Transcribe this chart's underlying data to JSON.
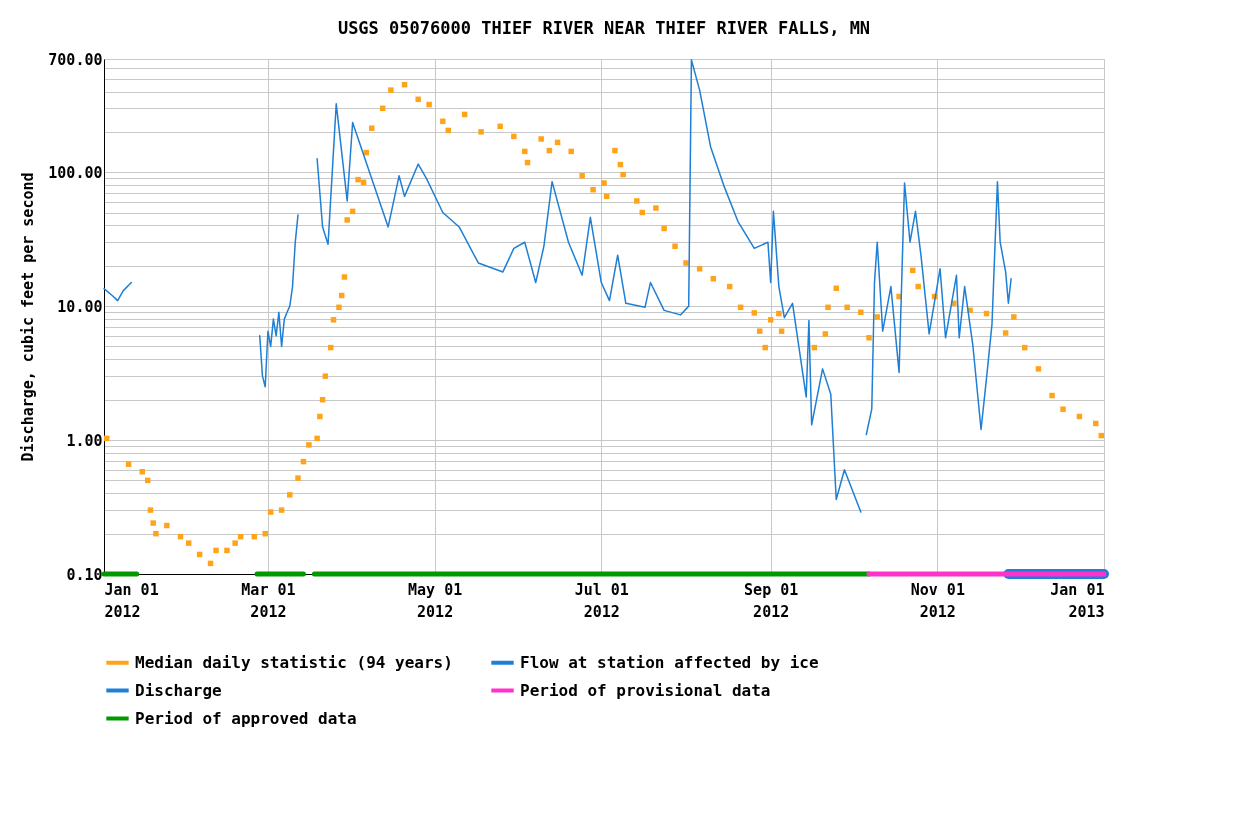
{
  "chart_data": {
    "type": "line",
    "title": "USGS 05076000 THIEF RIVER NEAR THIEF RIVER FALLS, MN",
    "ylabel": "Discharge, cubic feet per second",
    "log": "y",
    "grid": true,
    "legend": "bottom",
    "ylim": [
      0.1,
      700
    ],
    "yticks": [
      {
        "value": 0.1,
        "label": "0.10"
      },
      {
        "value": 0.2,
        "label": null
      },
      {
        "value": 0.3,
        "label": null
      },
      {
        "value": 0.4,
        "label": null
      },
      {
        "value": 0.5,
        "label": null
      },
      {
        "value": 0.6,
        "label": null
      },
      {
        "value": 0.7,
        "label": null
      },
      {
        "value": 0.8,
        "label": null
      },
      {
        "value": 0.9,
        "label": null
      },
      {
        "value": 1,
        "label": "1.00"
      },
      {
        "value": 2,
        "label": null
      },
      {
        "value": 3,
        "label": null
      },
      {
        "value": 4,
        "label": null
      },
      {
        "value": 5,
        "label": null
      },
      {
        "value": 6,
        "label": null
      },
      {
        "value": 7,
        "label": null
      },
      {
        "value": 8,
        "label": null
      },
      {
        "value": 9,
        "label": null
      },
      {
        "value": 10,
        "label": "10.00"
      },
      {
        "value": 20,
        "label": null
      },
      {
        "value": 30,
        "label": null
      },
      {
        "value": 40,
        "label": null
      },
      {
        "value": 50,
        "label": null
      },
      {
        "value": 60,
        "label": null
      },
      {
        "value": 70,
        "label": null
      },
      {
        "value": 80,
        "label": null
      },
      {
        "value": 90,
        "label": null
      },
      {
        "value": 100,
        "label": "100.00"
      },
      {
        "value": 200,
        "label": null
      },
      {
        "value": 300,
        "label": null
      },
      {
        "value": 400,
        "label": null
      },
      {
        "value": 500,
        "label": null
      },
      {
        "value": 600,
        "label": null
      },
      {
        "value": 700,
        "label": "700.00"
      }
    ],
    "xlim": [
      "2012-01-01",
      "2013-01-01"
    ],
    "xticks": [
      {
        "value": "2012-01-01",
        "label": "Jan 01 2012"
      },
      {
        "value": "2012-03-01",
        "label": "Mar 01 2012"
      },
      {
        "value": "2012-05-01",
        "label": "May 01 2012"
      },
      {
        "value": "2012-07-01",
        "label": "Jul 01 2012"
      },
      {
        "value": "2012-09-01",
        "label": "Sep 01 2012"
      },
      {
        "value": "2012-11-01",
        "label": "Nov 01 2012"
      },
      {
        "value": "2013-01-01",
        "label": "Jan 01 2013"
      }
    ],
    "series": [
      {
        "name": "Median daily statistic (94 years)",
        "type": "scatter",
        "color": "#ffa31a",
        "x": [
          "2012-01-02",
          "2012-01-10",
          "2012-01-15",
          "2012-01-17",
          "2012-01-18",
          "2012-01-19",
          "2012-01-20",
          "2012-01-24",
          "2012-01-29",
          "2012-02-01",
          "2012-02-05",
          "2012-02-09",
          "2012-02-11",
          "2012-02-15",
          "2012-02-18",
          "2012-02-20",
          "2012-02-25",
          "2012-02-29",
          "2012-03-02",
          "2012-03-06",
          "2012-03-09",
          "2012-03-12",
          "2012-03-14",
          "2012-03-16",
          "2012-03-19",
          "2012-03-20",
          "2012-03-21",
          "2012-03-22",
          "2012-03-24",
          "2012-03-25",
          "2012-03-27",
          "2012-03-28",
          "2012-03-29",
          "2012-03-30",
          "2012-04-01",
          "2012-04-03",
          "2012-04-05",
          "2012-04-06",
          "2012-04-08",
          "2012-04-12",
          "2012-04-15",
          "2012-04-20",
          "2012-04-25",
          "2012-04-29",
          "2012-05-04",
          "2012-05-06",
          "2012-05-12",
          "2012-05-18",
          "2012-05-25",
          "2012-05-30",
          "2012-06-03",
          "2012-06-04",
          "2012-06-09",
          "2012-06-12",
          "2012-06-15",
          "2012-06-20",
          "2012-06-24",
          "2012-06-28",
          "2012-07-02",
          "2012-07-03",
          "2012-07-06",
          "2012-07-08",
          "2012-07-09",
          "2012-07-14",
          "2012-07-16",
          "2012-07-21",
          "2012-07-24",
          "2012-07-28",
          "2012-08-01",
          "2012-08-06",
          "2012-08-11",
          "2012-08-17",
          "2012-08-21",
          "2012-08-26",
          "2012-08-28",
          "2012-08-30",
          "2012-09-01",
          "2012-09-04",
          "2012-09-05",
          "2012-09-17",
          "2012-09-21",
          "2012-09-22",
          "2012-09-25",
          "2012-09-29",
          "2012-10-04",
          "2012-10-07",
          "2012-10-10",
          "2012-10-18",
          "2012-10-23",
          "2012-10-25",
          "2012-10-31",
          "2012-11-07",
          "2012-11-13",
          "2012-11-19",
          "2012-11-26",
          "2012-11-29",
          "2012-12-03",
          "2012-12-08",
          "2012-12-13",
          "2012-12-17",
          "2012-12-23",
          "2012-12-29",
          "2012-12-31"
        ],
        "values": [
          1.03,
          0.66,
          0.58,
          0.5,
          0.3,
          0.24,
          0.2,
          0.23,
          0.19,
          0.17,
          0.14,
          0.12,
          0.15,
          0.15,
          0.17,
          0.19,
          0.19,
          0.2,
          0.29,
          0.3,
          0.39,
          0.52,
          0.69,
          0.92,
          1.03,
          1.5,
          2,
          3,
          4.9,
          7.9,
          9.8,
          12,
          16.5,
          44,
          51,
          88,
          84,
          140,
          213,
          300,
          410,
          450,
          350,
          320,
          240,
          205,
          270,
          200,
          220,
          185,
          143,
          118,
          177,
          145,
          167,
          143,
          94,
          74,
          83,
          66,
          145,
          114,
          96,
          61,
          50,
          54,
          38,
          28,
          21,
          19,
          16,
          14,
          9.8,
          8.9,
          6.5,
          4.9,
          7.9,
          8.8,
          6.5,
          4.9,
          6.2,
          9.8,
          13.6,
          9.8,
          9,
          5.8,
          8.3,
          11.8,
          18.5,
          14,
          11.8,
          10.5,
          9.3,
          8.8,
          6.3,
          8.3,
          4.9,
          3.4,
          2.15,
          1.7,
          1.5,
          1.33,
          1.08
        ]
      },
      {
        "name": "Flow at station affected by ice",
        "type": "line",
        "color": "#1f7fd4",
        "x": [
          "2012-11-27",
          "2013-01-01"
        ],
        "values": [
          0.1,
          0.1
        ]
      },
      {
        "name": "Discharge",
        "type": "line",
        "color": "#1f7fd4",
        "x": [
          "2012-01-01",
          "2012-01-04",
          "2012-01-06",
          "2012-01-08",
          "2012-01-11",
          "2012-02-01",
          "2012-02-27",
          "2012-02-28",
          "2012-02-29",
          "2012-03-01",
          "2012-03-02",
          "2012-03-03",
          "2012-03-04",
          "2012-03-05",
          "2012-03-06",
          "2012-03-07",
          "2012-03-08",
          "2012-03-09",
          "2012-03-10",
          "2012-03-11",
          "2012-03-12",
          "2012-03-15",
          "2012-03-19",
          "2012-03-21",
          "2012-03-23",
          "2012-03-26",
          "2012-03-30",
          "2012-04-01",
          "2012-04-14",
          "2012-04-18",
          "2012-04-20",
          "2012-04-25",
          "2012-04-28",
          "2012-05-04",
          "2012-05-10",
          "2012-05-17",
          "2012-05-26",
          "2012-05-30",
          "2012-06-03",
          "2012-06-07",
          "2012-06-10",
          "2012-06-13",
          "2012-06-19",
          "2012-06-24",
          "2012-06-27",
          "2012-07-01",
          "2012-07-04",
          "2012-07-07",
          "2012-07-10",
          "2012-07-17",
          "2012-07-19",
          "2012-07-24",
          "2012-07-30",
          "2012-08-02",
          "2012-08-03",
          "2012-08-06",
          "2012-08-10",
          "2012-08-15",
          "2012-08-20",
          "2012-08-26",
          "2012-08-31",
          "2012-09-01",
          "2012-09-02",
          "2012-09-04",
          "2012-09-06",
          "2012-09-09",
          "2012-09-14",
          "2012-09-15",
          "2012-09-16",
          "2012-09-20",
          "2012-09-23",
          "2012-09-25",
          "2012-09-28",
          "2012-10-04",
          "2012-10-05",
          "2012-10-06",
          "2012-10-08",
          "2012-10-09",
          "2012-10-10",
          "2012-10-12",
          "2012-10-15",
          "2012-10-18",
          "2012-10-20",
          "2012-10-22",
          "2012-10-24",
          "2012-10-26",
          "2012-10-29",
          "2012-11-02",
          "2012-11-04",
          "2012-11-08",
          "2012-11-09",
          "2012-11-11",
          "2012-11-14",
          "2012-11-17",
          "2012-11-19",
          "2012-11-21",
          "2012-11-23",
          "2012-11-24",
          "2012-11-26",
          "2012-11-27",
          "2012-11-28"
        ],
        "values": [
          13.5,
          12,
          11,
          13,
          15,
          null,
          6,
          3,
          2.5,
          6.5,
          5,
          8,
          6,
          9,
          5,
          8,
          9,
          10,
          14,
          30,
          48,
          null,
          126,
          39,
          29,
          324,
          61,
          235,
          39,
          94,
          66,
          115,
          90,
          50,
          39,
          21,
          18,
          27,
          30,
          15,
          28,
          85,
          30,
          17,
          46,
          15,
          11,
          24,
          10.5,
          9.8,
          15,
          9.3,
          8.6,
          10,
          690,
          410,
          155,
          78,
          43,
          27,
          30,
          15,
          51,
          14,
          8.2,
          10.5,
          2.1,
          7.8,
          1.3,
          3.4,
          2.2,
          0.36,
          0.6,
          0.29,
          null,
          1.1,
          1.7,
          15,
          30,
          6.5,
          14,
          3.2,
          83,
          30,
          51,
          24,
          6.2,
          19,
          5.8,
          17,
          5.8,
          14,
          5.1,
          1.2,
          2.9,
          7.3,
          85,
          30,
          18,
          10.5,
          16
        ]
      },
      {
        "name": "Period of provisional data",
        "type": "line",
        "color": "#ff33cc",
        "x": [
          "2012-10-07",
          "2013-01-01"
        ],
        "values": [
          0.1,
          0.1
        ]
      },
      {
        "name": "Period of approved data",
        "type": "line",
        "color": "#009900",
        "x": [
          "2012-01-01",
          "2012-01-13",
          "2012-01-20",
          "2012-02-26",
          "2012-03-14",
          "2012-03-16",
          "2012-03-18",
          "2012-10-07"
        ],
        "values": [
          0.1,
          0.1,
          null,
          0.1,
          0.1,
          null,
          0.1,
          0.1
        ]
      }
    ]
  }
}
